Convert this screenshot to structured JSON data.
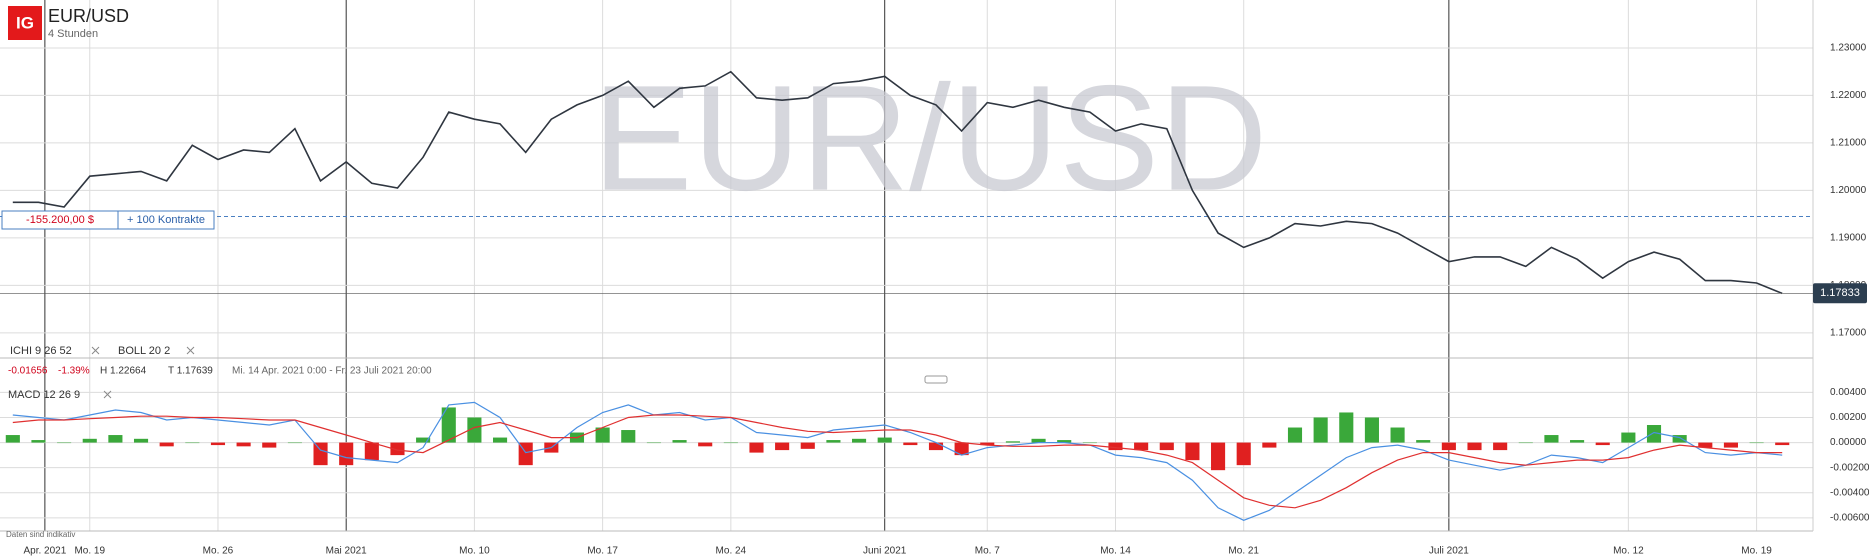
{
  "header": {
    "logo": "IG",
    "title": "EUR/USD",
    "interval": "4 Stunden",
    "watermark": "EUR/USD"
  },
  "position": {
    "pnl": "-155.200,00 $",
    "size": "+ 100 Kontrakte"
  },
  "indicators": {
    "ichimoku": "ICHI  9  26  52",
    "bollinger": "BOLL  20  2",
    "change": "-0.01656",
    "change_pct": "-1.39%",
    "high": "H 1.22664",
    "low": "T 1.17639",
    "range": "Mi. 14 Apr. 2021 0:00 - Fr. 23 Juli 2021 20:00",
    "macd": "MACD  12  26  9"
  },
  "footer": {
    "note": "Daten sind indikativ"
  },
  "chart_data": [
    {
      "type": "line",
      "x": [
        0,
        1,
        2,
        3,
        4,
        5,
        6,
        7,
        8,
        9,
        10,
        11,
        12,
        13,
        14,
        15,
        16,
        17,
        18,
        19,
        20,
        21,
        22,
        23,
        24,
        25,
        26,
        27,
        28,
        29,
        30,
        31,
        32,
        33,
        34,
        35,
        36,
        37,
        38,
        39,
        40,
        41,
        42,
        43,
        44,
        45,
        46,
        47,
        48,
        49,
        50,
        51,
        52,
        53,
        54,
        55,
        56,
        57,
        58,
        59,
        60,
        61,
        62,
        63,
        64,
        65,
        66,
        67,
        68,
        69
      ],
      "series": [
        {
          "color": "#2f3640",
          "values": [
            1.1975,
            1.1975,
            1.1965,
            1.203,
            1.2035,
            1.204,
            1.202,
            1.2095,
            1.2065,
            1.2085,
            1.208,
            1.213,
            1.202,
            1.206,
            1.2015,
            1.2005,
            1.207,
            1.2165,
            1.215,
            1.214,
            1.208,
            1.215,
            1.218,
            1.22,
            1.223,
            1.2175,
            1.2215,
            1.222,
            1.225,
            1.2195,
            1.219,
            1.2195,
            1.2225,
            1.223,
            1.224,
            1.22,
            1.218,
            1.2125,
            1.2185,
            1.2175,
            1.219,
            1.2175,
            1.2165,
            1.2125,
            1.214,
            1.213,
            1.2,
            1.191,
            1.188,
            1.19,
            1.193,
            1.1925,
            1.1935,
            1.193,
            1.191,
            1.188,
            1.185,
            1.186,
            1.186,
            1.184,
            1.188,
            1.1855,
            1.1815,
            1.185,
            1.187,
            1.1855,
            1.181,
            1.181,
            1.1805,
            1.1783
          ]
        }
      ],
      "xlim": [
        -0.5,
        70.2
      ],
      "ylim": [
        1.1647,
        1.2401
      ],
      "yticks": [
        {
          "value": 1.17,
          "label": "1.17000"
        },
        {
          "value": 1.18,
          "label": "1.18000"
        },
        {
          "value": 1.19,
          "label": "1.19000"
        },
        {
          "value": 1.2,
          "label": "1.20000"
        },
        {
          "value": 1.21,
          "label": "1.21000"
        },
        {
          "value": 1.22,
          "label": "1.22000"
        },
        {
          "value": 1.23,
          "label": "1.23000"
        }
      ],
      "position_level": 1.1945,
      "last_price": {
        "value": 1.17833,
        "label": "1.17833"
      },
      "grid": true
    },
    {
      "type": "macd",
      "x": [
        0,
        1,
        2,
        3,
        4,
        5,
        6,
        7,
        8,
        9,
        10,
        11,
        12,
        13,
        14,
        15,
        16,
        17,
        18,
        19,
        20,
        21,
        22,
        23,
        24,
        25,
        26,
        27,
        28,
        29,
        30,
        31,
        32,
        33,
        34,
        35,
        36,
        37,
        38,
        39,
        40,
        41,
        42,
        43,
        44,
        45,
        46,
        47,
        48,
        49,
        50,
        51,
        52,
        53,
        54,
        55,
        56,
        57,
        58,
        59,
        60,
        61,
        62,
        63,
        64,
        65,
        66,
        67,
        68,
        69
      ],
      "histogram": {
        "color": "#3aa83a",
        "negative_color": "#e02020",
        "values": [
          0.0006,
          0.0002,
          0.0,
          0.0003,
          0.0006,
          0.0003,
          -0.0003,
          0.0,
          -0.0002,
          -0.0003,
          -0.0004,
          0.0,
          -0.0018,
          -0.0018,
          -0.0014,
          -0.001,
          0.0004,
          0.0028,
          0.002,
          0.0004,
          -0.0018,
          -0.0008,
          0.0008,
          0.0012,
          0.001,
          0.0,
          0.0002,
          -0.0003,
          0.0,
          -0.0008,
          -0.0006,
          -0.0005,
          0.0002,
          0.0003,
          0.0004,
          -0.0002,
          -0.0006,
          -0.001,
          -0.0002,
          0.0001,
          0.0003,
          0.0002,
          0.0,
          -0.0006,
          -0.0006,
          -0.0006,
          -0.0014,
          -0.0022,
          -0.0018,
          -0.0004,
          0.0012,
          0.002,
          0.0024,
          0.002,
          0.0012,
          0.0002,
          -0.0006,
          -0.0006,
          -0.0006,
          0.0,
          0.0006,
          0.0002,
          -0.0002,
          0.0008,
          0.0014,
          0.0006,
          -0.0004,
          -0.0004,
          0.0,
          -0.0002
        ]
      },
      "series": [
        {
          "color": "#4a90e2",
          "values": [
            0.0022,
            0.002,
            0.0018,
            0.0022,
            0.0026,
            0.0024,
            0.0018,
            0.002,
            0.0018,
            0.0016,
            0.0014,
            0.0018,
            -0.0006,
            -0.0012,
            -0.0014,
            -0.0016,
            -0.0004,
            0.003,
            0.0032,
            0.002,
            -0.0008,
            -0.0004,
            0.0012,
            0.0024,
            0.003,
            0.0022,
            0.0024,
            0.0018,
            0.002,
            0.0008,
            0.0006,
            0.0004,
            0.001,
            0.0012,
            0.0014,
            0.0008,
            0.0,
            -0.001,
            -0.0004,
            -0.0002,
            0.0,
            0.0,
            -0.0002,
            -0.001,
            -0.0012,
            -0.0016,
            -0.003,
            -0.0052,
            -0.0062,
            -0.0054,
            -0.004,
            -0.0026,
            -0.0012,
            -0.0004,
            -0.0002,
            -0.0006,
            -0.0014,
            -0.0018,
            -0.0022,
            -0.0018,
            -0.001,
            -0.0012,
            -0.0016,
            -0.0004,
            0.0008,
            0.0004,
            -0.0008,
            -0.001,
            -0.0008,
            -0.001
          ]
        },
        {
          "color": "#e03030",
          "values": [
            0.0016,
            0.0018,
            0.0018,
            0.0019,
            0.002,
            0.0021,
            0.0021,
            0.002,
            0.002,
            0.0019,
            0.0018,
            0.0018,
            0.0012,
            0.0006,
            0.0,
            -0.0006,
            -0.0008,
            0.0002,
            0.0012,
            0.0016,
            0.001,
            0.0004,
            0.0004,
            0.0012,
            0.002,
            0.0022,
            0.0022,
            0.0021,
            0.002,
            0.0016,
            0.0012,
            0.0009,
            0.0008,
            0.0009,
            0.001,
            0.001,
            0.0006,
            0.0,
            -0.0002,
            -0.0003,
            -0.0003,
            -0.0002,
            -0.0002,
            -0.0004,
            -0.0006,
            -0.001,
            -0.0016,
            -0.003,
            -0.0044,
            -0.005,
            -0.0052,
            -0.0046,
            -0.0036,
            -0.0024,
            -0.0014,
            -0.0008,
            -0.0008,
            -0.0012,
            -0.0016,
            -0.0018,
            -0.0016,
            -0.0014,
            -0.0014,
            -0.0012,
            -0.0006,
            -0.0002,
            -0.0004,
            -0.0006,
            -0.0008,
            -0.0008
          ]
        }
      ],
      "xlim": [
        -0.5,
        70.2
      ],
      "ylim": [
        -0.00705,
        0.00467
      ],
      "xticks": [
        {
          "value": 1.25,
          "label": "Apr. 2021"
        },
        {
          "value": 3,
          "label": "Mo. 19"
        },
        {
          "value": 8,
          "label": "Mo. 26"
        },
        {
          "value": 13,
          "label": "Mai 2021"
        },
        {
          "value": 18,
          "label": "Mo. 10"
        },
        {
          "value": 23,
          "label": "Mo. 17"
        },
        {
          "value": 28,
          "label": "Mo. 24"
        },
        {
          "value": 34,
          "label": "Juni 2021"
        },
        {
          "value": 38,
          "label": "Mo. 7"
        },
        {
          "value": 43,
          "label": "Mo. 14"
        },
        {
          "value": 48,
          "label": "Mo. 21"
        },
        {
          "value": 56,
          "label": "Juli 2021"
        },
        {
          "value": 63,
          "label": "Mo. 12"
        },
        {
          "value": 68,
          "label": "Mo. 19"
        }
      ],
      "yticks": [
        {
          "value": 0.004,
          "label": "0.00400"
        },
        {
          "value": 0.002,
          "label": "0.00200"
        },
        {
          "value": 0,
          "label": "0.00000"
        },
        {
          "value": -0.002,
          "label": "-0.00200"
        },
        {
          "value": -0.004,
          "label": "-0.00400"
        },
        {
          "value": -0.006,
          "label": "-0.00600"
        }
      ],
      "grid": true
    }
  ]
}
